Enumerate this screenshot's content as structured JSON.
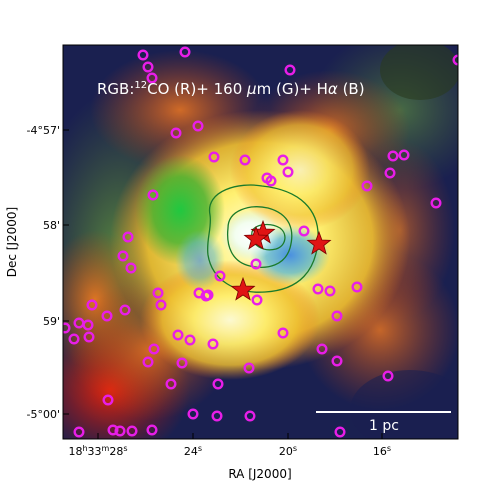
{
  "title_prefix": "RGB:",
  "title_co_sup": "12",
  "title_co": "CO (R)+ 160 ",
  "title_mu": "μ",
  "title_m": "m (G)+  H",
  "title_alpha": "α",
  "title_end": " (B)",
  "xlabel": "RA [J2000]",
  "ylabel": "Dec [J2000]",
  "x_ticks": {
    "t0_h": "18",
    "t0_hs": "h",
    "t0_m": "33",
    "t0_ms": "m",
    "t0_s": "28",
    "t0_ss": "s",
    "t1": "24",
    "t1_s": "s",
    "t2": "20",
    "t2_s": "s",
    "t3": "16",
    "t3_s": "s"
  },
  "y_ticks": [
    "-4°57'",
    "58'",
    "59'",
    "-5°00'"
  ],
  "scalebar": "1 pc",
  "colors": {
    "circle": "#e81ee8",
    "star": "#e01414",
    "contour": "#1a7a2a",
    "scalebar": "#ffffff"
  },
  "marker_names": [
    "circle-marker",
    "star-marker"
  ]
}
